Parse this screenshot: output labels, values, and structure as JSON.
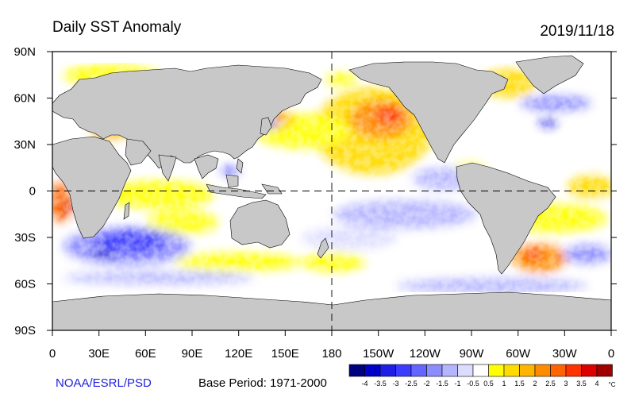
{
  "title": "Daily SST Anomaly",
  "date": "2019/11/18",
  "credit": "NOAA/ESRL/PSD",
  "base_period": "Base Period: 1971-2000",
  "lat_labels": [
    "90N",
    "60N",
    "30N",
    "0",
    "30S",
    "60S",
    "90S"
  ],
  "lon_labels": [
    "0",
    "30E",
    "60E",
    "90E",
    "120E",
    "150E",
    "180",
    "150W",
    "120W",
    "90W",
    "60W",
    "30W",
    "0"
  ],
  "colorbar": {
    "unit": "°C",
    "tick_labels": [
      "-4",
      "-3.5",
      "-3",
      "-2.5",
      "-2",
      "-1.5",
      "-1",
      "-0.5",
      "0.5",
      "1",
      "1.5",
      "2",
      "2.5",
      "3",
      "3.5",
      "4"
    ],
    "colors": [
      "#000080",
      "#0000c8",
      "#1e1ee6",
      "#3c3cff",
      "#6464ff",
      "#8c8cff",
      "#b4b4ff",
      "#dcdcff",
      "#ffffff",
      "#ffff00",
      "#ffdc00",
      "#ffb400",
      "#ff8c00",
      "#ff6400",
      "#ff3200",
      "#dc0000",
      "#a00000"
    ]
  },
  "colors": {
    "land": "#c8c8c8",
    "ice": "#ffffff",
    "frame": "#000000",
    "credit": "#2222dd"
  }
}
